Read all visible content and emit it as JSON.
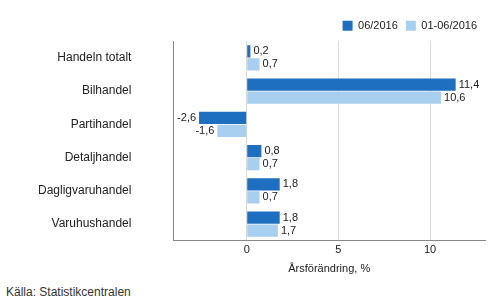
{
  "chart_data": {
    "type": "bar",
    "orientation": "horizontal",
    "categories": [
      "Handeln totalt",
      "Bilhandel",
      "Partihandel",
      "Detaljhandel",
      "Dagligvaruhandel",
      "Varuhushandel"
    ],
    "series": [
      {
        "name": "06/2016",
        "color": "#1f6fc1",
        "values": [
          0.2,
          11.4,
          -2.6,
          0.8,
          1.8,
          1.8
        ],
        "value_labels": [
          "0,2",
          "11,4",
          "-2,6",
          "0,8",
          "1,8",
          "1,8"
        ]
      },
      {
        "name": "01-06/2016",
        "color": "#a9cff0",
        "values": [
          0.7,
          10.6,
          -1.6,
          0.7,
          0.7,
          1.7
        ],
        "value_labels": [
          "0,7",
          "10,6",
          "-1,6",
          "0,7",
          "0,7",
          "1,7"
        ]
      }
    ],
    "x_label": "Årsförändring, %",
    "xlim": [
      -4,
      13
    ],
    "xticks": [
      0,
      5,
      10
    ],
    "grid": true,
    "legend": "top-right",
    "data_labels": true,
    "source": "Källa: Statistikcentralen"
  }
}
